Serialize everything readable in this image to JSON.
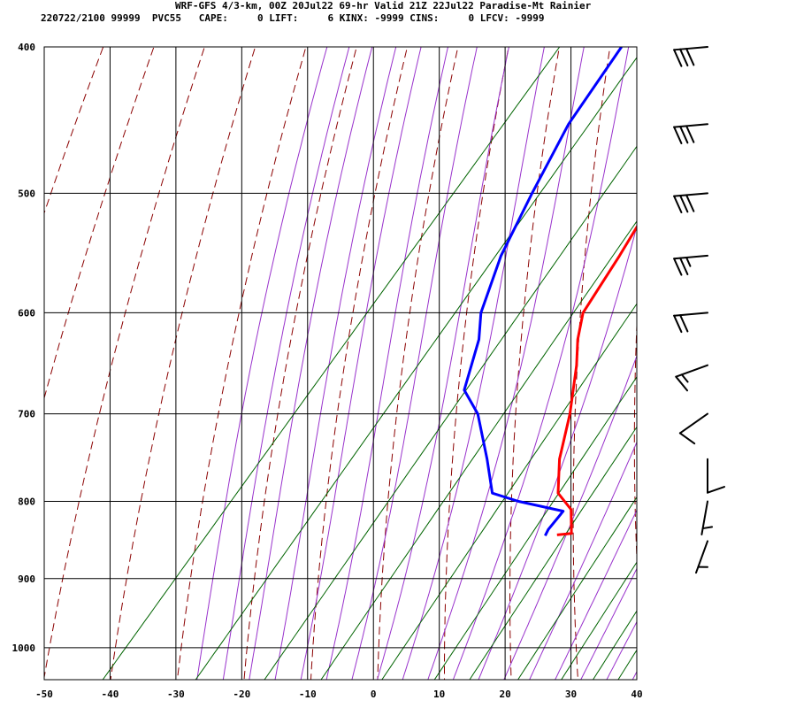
{
  "header": {
    "line1": "WRF-GFS 4/3-km, 00Z 20Jul22 69-hr Valid 21Z 22Jul22 Paradise-Mt Rainier",
    "line2": "220722/2100 99999  PVC55   CAPE:     0 LIFT:     6 KINX: -9999 CINS:     0 LFCV: -9999"
  },
  "colors": {
    "temperature": "#ff0000",
    "dewpoint": "#0000ff",
    "dry_adiabat": "#8b0000",
    "moist_adiabat": "#9932cc",
    "mixing_ratio": "#006400",
    "grid": "#000000"
  },
  "chart_data": {
    "type": "line",
    "title": "",
    "xlabel": "",
    "ylabel": "",
    "xlim": [
      -50,
      40
    ],
    "ylim": [
      1050,
      400
    ],
    "x_ticks": [
      -50,
      -40,
      -30,
      -20,
      -10,
      0,
      10,
      20,
      30,
      40
    ],
    "y_ticks": [
      400,
      500,
      600,
      700,
      800,
      900,
      1000
    ],
    "grid": true,
    "series": [
      {
        "key": "temperature",
        "points": [
          [
            -23,
            400
          ],
          [
            -20,
            450
          ],
          [
            -17,
            500
          ],
          [
            -15,
            550
          ],
          [
            -13.5,
            600
          ],
          [
            -11,
            625
          ],
          [
            -8,
            650
          ],
          [
            -3,
            700
          ],
          [
            1,
            750
          ],
          [
            5,
            790
          ],
          [
            9,
            810
          ],
          [
            12,
            840
          ],
          [
            10,
            842
          ]
        ]
      },
      {
        "key": "dewpoint",
        "points": [
          [
            -40.5,
            400
          ],
          [
            -39,
            450
          ],
          [
            -36,
            500
          ],
          [
            -33,
            550
          ],
          [
            -29,
            600
          ],
          [
            -26,
            625
          ],
          [
            -22,
            675
          ],
          [
            -17,
            700
          ],
          [
            -10,
            750
          ],
          [
            -5,
            790
          ],
          [
            0,
            800
          ],
          [
            8,
            812
          ],
          [
            8,
            835
          ],
          [
            8.3,
            843
          ]
        ]
      }
    ],
    "wind_barbs": [
      {
        "pressure": 400,
        "speed_kt": 30,
        "direction_deg": 265
      },
      {
        "pressure": 450,
        "speed_kt": 30,
        "direction_deg": 265
      },
      {
        "pressure": 500,
        "speed_kt": 30,
        "direction_deg": 265
      },
      {
        "pressure": 550,
        "speed_kt": 25,
        "direction_deg": 265
      },
      {
        "pressure": 600,
        "speed_kt": 20,
        "direction_deg": 265
      },
      {
        "pressure": 650,
        "speed_kt": 15,
        "direction_deg": 250
      },
      {
        "pressure": 700,
        "speed_kt": 10,
        "direction_deg": 235
      },
      {
        "pressure": 750,
        "speed_kt": 10,
        "direction_deg": 180
      },
      {
        "pressure": 800,
        "speed_kt": 5,
        "direction_deg": 190
      },
      {
        "pressure": 850,
        "speed_kt": 5,
        "direction_deg": 200
      }
    ]
  }
}
